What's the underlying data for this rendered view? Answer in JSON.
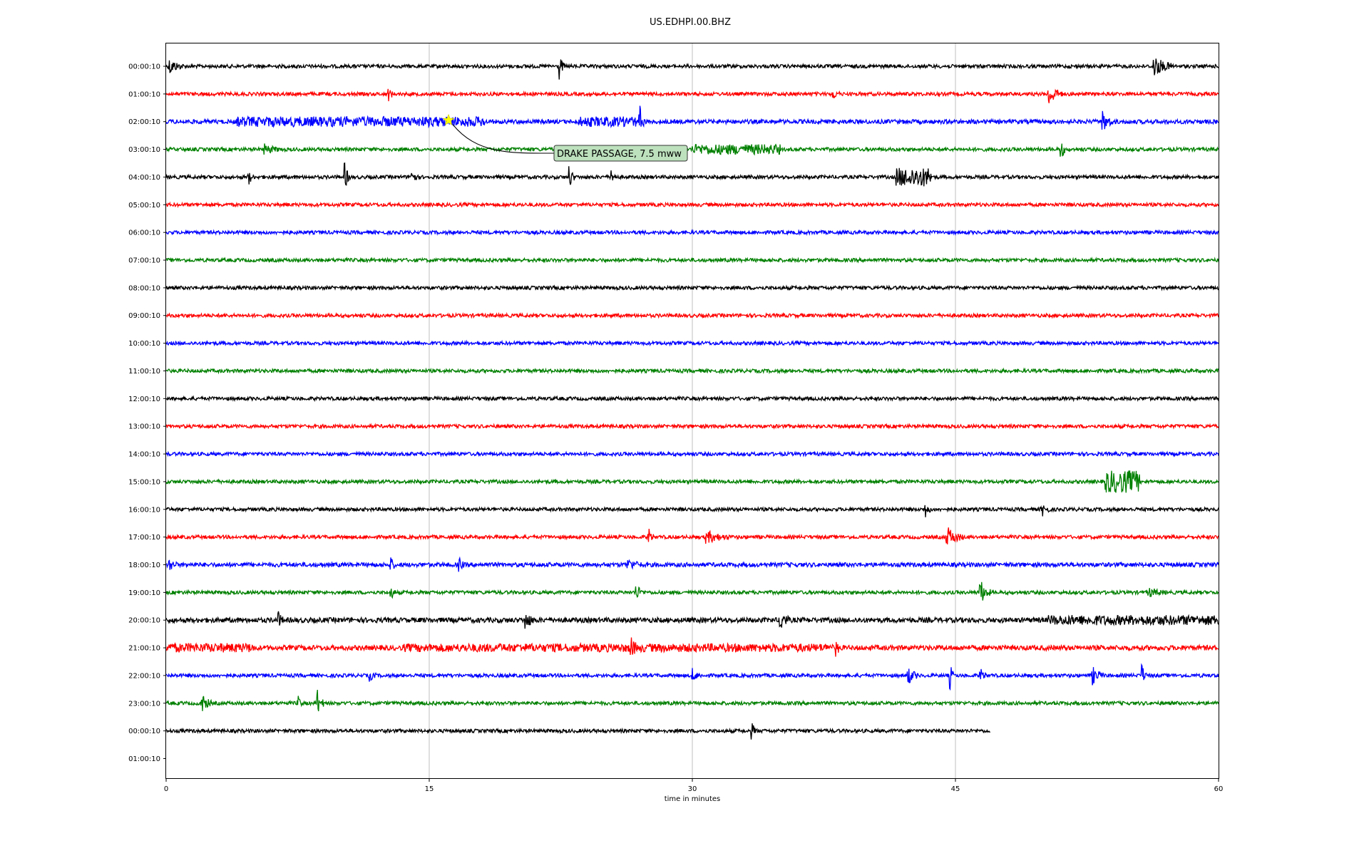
{
  "chart_data": {
    "type": "line",
    "title": "US.EDHPI.00.BHZ",
    "xlabel": "time in minutes",
    "ylabel": "",
    "xlim": [
      0,
      60
    ],
    "x_ticks": [
      0,
      15,
      30,
      45,
      60
    ],
    "x_tick_labels": [
      "0",
      "15",
      "30",
      "45",
      "60"
    ],
    "grid": "vertical",
    "row_labels": [
      "00:00:10",
      "01:00:10",
      "02:00:10",
      "03:00:10",
      "04:00:10",
      "05:00:10",
      "06:00:10",
      "07:00:10",
      "08:00:10",
      "09:00:10",
      "10:00:10",
      "11:00:10",
      "12:00:10",
      "13:00:10",
      "14:00:10",
      "15:00:10",
      "16:00:10",
      "17:00:10",
      "18:00:10",
      "19:00:10",
      "20:00:10",
      "21:00:10",
      "22:00:10",
      "23:00:10",
      "00:00:10",
      "01:00:10"
    ],
    "trace_colors": [
      "#000000",
      "#ff0000",
      "#0000ff",
      "#008000"
    ],
    "traces": [
      {
        "row": 0,
        "end_minute": 60,
        "noise": 2.5,
        "events": [
          {
            "t": 0.2,
            "amp": 10,
            "dur": 0.8
          },
          {
            "t": 22.4,
            "amp": 20,
            "dur": 0.3
          },
          {
            "t": 56.3,
            "amp": 14,
            "dur": 1.2
          }
        ]
      },
      {
        "row": 1,
        "end_minute": 60,
        "noise": 2.5,
        "events": [
          {
            "t": 12.7,
            "amp": 8,
            "dur": 0.3
          },
          {
            "t": 38.0,
            "amp": 7,
            "dur": 0.4
          },
          {
            "t": 50.3,
            "amp": 16,
            "dur": 0.8
          }
        ]
      },
      {
        "row": 2,
        "end_minute": 60,
        "noise": 3,
        "events": [
          {
            "t": 4.0,
            "amp": 7,
            "dur": 14.2
          },
          {
            "t": 23.5,
            "amp": 7,
            "dur": 3.3
          },
          {
            "t": 27.0,
            "amp": 22,
            "dur": 0.3
          },
          {
            "t": 53.4,
            "amp": 14,
            "dur": 0.6
          }
        ]
      },
      {
        "row": 3,
        "end_minute": 60,
        "noise": 2.5,
        "events": [
          {
            "t": 5.6,
            "amp": 6,
            "dur": 1.0
          },
          {
            "t": 30.0,
            "amp": 8,
            "dur": 5.0
          },
          {
            "t": 51.0,
            "amp": 16,
            "dur": 0.3
          }
        ]
      },
      {
        "row": 4,
        "end_minute": 60,
        "noise": 2.5,
        "events": [
          {
            "t": 4.7,
            "amp": 10,
            "dur": 0.3
          },
          {
            "t": 10.2,
            "amp": 18,
            "dur": 0.3
          },
          {
            "t": 14.0,
            "amp": 14,
            "dur": 0.3
          },
          {
            "t": 23.0,
            "amp": 16,
            "dur": 0.3
          },
          {
            "t": 25.4,
            "amp": 12,
            "dur": 0.3
          },
          {
            "t": 41.6,
            "amp": 18,
            "dur": 2.0
          }
        ]
      },
      {
        "row": 5,
        "end_minute": 60,
        "noise": 2.5,
        "events": []
      },
      {
        "row": 6,
        "end_minute": 60,
        "noise": 2.5,
        "events": []
      },
      {
        "row": 7,
        "end_minute": 60,
        "noise": 2.5,
        "events": []
      },
      {
        "row": 8,
        "end_minute": 60,
        "noise": 2.5,
        "events": []
      },
      {
        "row": 9,
        "end_minute": 60,
        "noise": 2.5,
        "events": []
      },
      {
        "row": 10,
        "end_minute": 60,
        "noise": 2.5,
        "events": []
      },
      {
        "row": 11,
        "end_minute": 60,
        "noise": 2.5,
        "events": []
      },
      {
        "row": 12,
        "end_minute": 60,
        "noise": 2.5,
        "events": []
      },
      {
        "row": 13,
        "end_minute": 60,
        "noise": 2.5,
        "events": []
      },
      {
        "row": 14,
        "end_minute": 60,
        "noise": 2.5,
        "events": []
      },
      {
        "row": 15,
        "end_minute": 60,
        "noise": 2.5,
        "events": [
          {
            "t": 53.5,
            "amp": 22,
            "dur": 2.0
          }
        ]
      },
      {
        "row": 16,
        "end_minute": 60,
        "noise": 2.5,
        "events": [
          {
            "t": 43.3,
            "amp": 10,
            "dur": 0.3
          },
          {
            "t": 49.9,
            "amp": 10,
            "dur": 0.5
          }
        ]
      },
      {
        "row": 17,
        "end_minute": 60,
        "noise": 2.5,
        "events": [
          {
            "t": 27.5,
            "amp": 12,
            "dur": 0.3
          },
          {
            "t": 30.8,
            "amp": 8,
            "dur": 1.4
          },
          {
            "t": 44.5,
            "amp": 14,
            "dur": 1.0
          }
        ]
      },
      {
        "row": 18,
        "end_minute": 60,
        "noise": 3,
        "events": [
          {
            "t": 0.2,
            "amp": 8,
            "dur": 0.4
          },
          {
            "t": 12.8,
            "amp": 10,
            "dur": 0.3
          },
          {
            "t": 16.7,
            "amp": 10,
            "dur": 0.3
          },
          {
            "t": 26.3,
            "amp": 6,
            "dur": 1.0
          }
        ]
      },
      {
        "row": 19,
        "end_minute": 60,
        "noise": 2.5,
        "events": [
          {
            "t": 12.8,
            "amp": 10,
            "dur": 0.3
          },
          {
            "t": 26.8,
            "amp": 12,
            "dur": 0.4
          },
          {
            "t": 46.4,
            "amp": 18,
            "dur": 0.6
          },
          {
            "t": 56.0,
            "amp": 6,
            "dur": 1.0
          }
        ]
      },
      {
        "row": 20,
        "end_minute": 60,
        "noise": 3.5,
        "events": [
          {
            "t": 6.4,
            "amp": 10,
            "dur": 0.3
          },
          {
            "t": 20.5,
            "amp": 12,
            "dur": 0.5
          },
          {
            "t": 35.0,
            "amp": 16,
            "dur": 0.5
          },
          {
            "t": 50.3,
            "amp": 6,
            "dur": 9.7
          }
        ]
      },
      {
        "row": 21,
        "end_minute": 60,
        "noise": 3.5,
        "events": [
          {
            "t": 0.0,
            "amp": 5,
            "dur": 5.0
          },
          {
            "t": 13.5,
            "amp": 4,
            "dur": 24.5
          },
          {
            "t": 26.5,
            "amp": 14,
            "dur": 0.3
          },
          {
            "t": 38.2,
            "amp": 10,
            "dur": 0.3
          }
        ]
      },
      {
        "row": 22,
        "end_minute": 60,
        "noise": 2.5,
        "events": [
          {
            "t": 11.6,
            "amp": 7,
            "dur": 0.4
          },
          {
            "t": 30.0,
            "amp": 8,
            "dur": 0.5
          },
          {
            "t": 42.3,
            "amp": 12,
            "dur": 0.6
          },
          {
            "t": 44.7,
            "amp": 18,
            "dur": 0.2
          },
          {
            "t": 46.4,
            "amp": 10,
            "dur": 0.4
          },
          {
            "t": 52.8,
            "amp": 12,
            "dur": 0.7
          },
          {
            "t": 55.6,
            "amp": 18,
            "dur": 0.3
          }
        ]
      },
      {
        "row": 23,
        "end_minute": 60,
        "noise": 2.5,
        "events": [
          {
            "t": 2.0,
            "amp": 14,
            "dur": 0.6
          },
          {
            "t": 7.5,
            "amp": 10,
            "dur": 0.3
          },
          {
            "t": 8.6,
            "amp": 20,
            "dur": 0.4
          }
        ]
      },
      {
        "row": 24,
        "end_minute": 47,
        "noise": 2.5,
        "events": [
          {
            "t": 33.4,
            "amp": 10,
            "dur": 0.3
          }
        ]
      },
      {
        "row": 25,
        "end_minute": 0,
        "noise": 0,
        "events": []
      }
    ],
    "annotation": {
      "text": "DRAKE PASSAGE, 7.5 mww",
      "row": 2,
      "minute": 16.1,
      "marker": "star",
      "marker_color": "#ffff00",
      "box_color": "#bde0bd"
    }
  }
}
